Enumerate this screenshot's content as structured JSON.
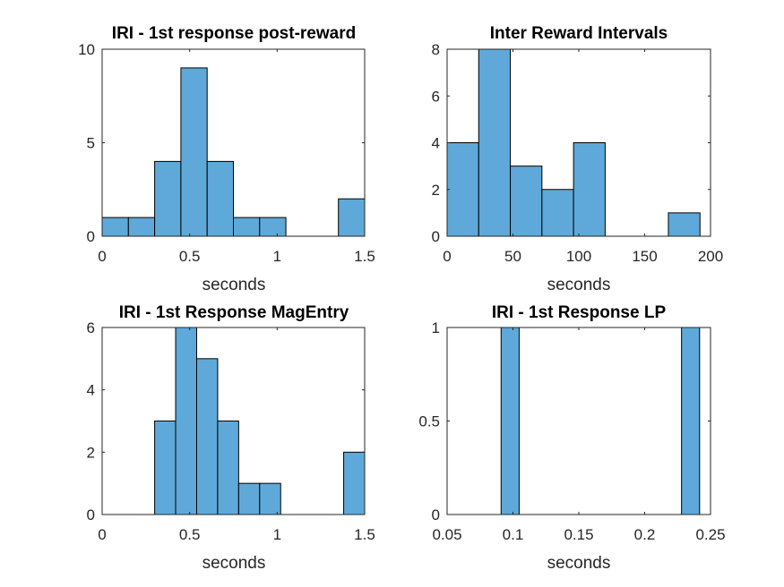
{
  "figure": {
    "background": "#ffffff",
    "bar_color": "#5ea9d9",
    "edge_color": "#000000"
  },
  "chart_data": [
    {
      "type": "bar",
      "title": "IRI - 1st response post-reward",
      "xlabel": "seconds",
      "ylabel": "",
      "xlim": [
        0,
        1.5
      ],
      "ylim": [
        0,
        10
      ],
      "xticks": [
        "0",
        "0.5",
        "1",
        "1.5"
      ],
      "xtick_values": [
        0,
        0.5,
        1,
        1.5
      ],
      "yticks": [
        "0",
        "5",
        "10"
      ],
      "ytick_values": [
        0,
        5,
        10
      ],
      "bin_edges": [
        0,
        0.15,
        0.3,
        0.45,
        0.6,
        0.75,
        0.9,
        1.05,
        1.2,
        1.35,
        1.5
      ],
      "values": [
        1,
        1,
        4,
        9,
        4,
        1,
        1,
        0,
        0,
        2
      ],
      "grid": false
    },
    {
      "type": "bar",
      "title": "Inter Reward Intervals",
      "xlabel": "seconds",
      "ylabel": "",
      "xlim": [
        0,
        200
      ],
      "ylim": [
        0,
        8
      ],
      "xticks": [
        "0",
        "50",
        "100",
        "150",
        "200"
      ],
      "xtick_values": [
        0,
        50,
        100,
        150,
        200
      ],
      "yticks": [
        "0",
        "2",
        "4",
        "6",
        "8"
      ],
      "ytick_values": [
        0,
        2,
        4,
        6,
        8
      ],
      "bin_edges": [
        0,
        24,
        48,
        72,
        96,
        120,
        144,
        168,
        192
      ],
      "values": [
        4,
        8,
        3,
        2,
        4,
        0,
        0,
        1
      ],
      "grid": false
    },
    {
      "type": "bar",
      "title": "IRI - 1st Response MagEntry",
      "xlabel": "seconds",
      "ylabel": "",
      "xlim": [
        0,
        1.5
      ],
      "ylim": [
        0,
        6
      ],
      "xticks": [
        "0",
        "0.5",
        "1",
        "1.5"
      ],
      "xtick_values": [
        0,
        0.5,
        1,
        1.5
      ],
      "yticks": [
        "0",
        "2",
        "4",
        "6"
      ],
      "ytick_values": [
        0,
        2,
        4,
        6
      ],
      "bin_edges": [
        0.3,
        0.42,
        0.54,
        0.66,
        0.78,
        0.9,
        1.02,
        1.14,
        1.26,
        1.38,
        1.5
      ],
      "values": [
        3,
        6,
        5,
        3,
        1,
        1,
        0,
        0,
        0,
        2
      ],
      "grid": false
    },
    {
      "type": "bar",
      "title": "IRI - 1st Response LP",
      "xlabel": "seconds",
      "ylabel": "",
      "xlim": [
        0.05,
        0.25
      ],
      "ylim": [
        0,
        1
      ],
      "xticks": [
        "0.05",
        "0.1",
        "0.15",
        "0.2",
        "0.25"
      ],
      "xtick_values": [
        0.05,
        0.1,
        0.15,
        0.2,
        0.25
      ],
      "yticks": [
        "0",
        "0.5",
        "1"
      ],
      "ytick_values": [
        0,
        0.5,
        1
      ],
      "bin_edges": [
        0.091,
        0.1047,
        0.1184,
        0.1321,
        0.1458,
        0.1595,
        0.1732,
        0.1869,
        0.2006,
        0.2143,
        0.228,
        0.2417
      ],
      "values": [
        1,
        0,
        0,
        0,
        0,
        0,
        0,
        0,
        0,
        0,
        1
      ],
      "grid": false
    }
  ]
}
